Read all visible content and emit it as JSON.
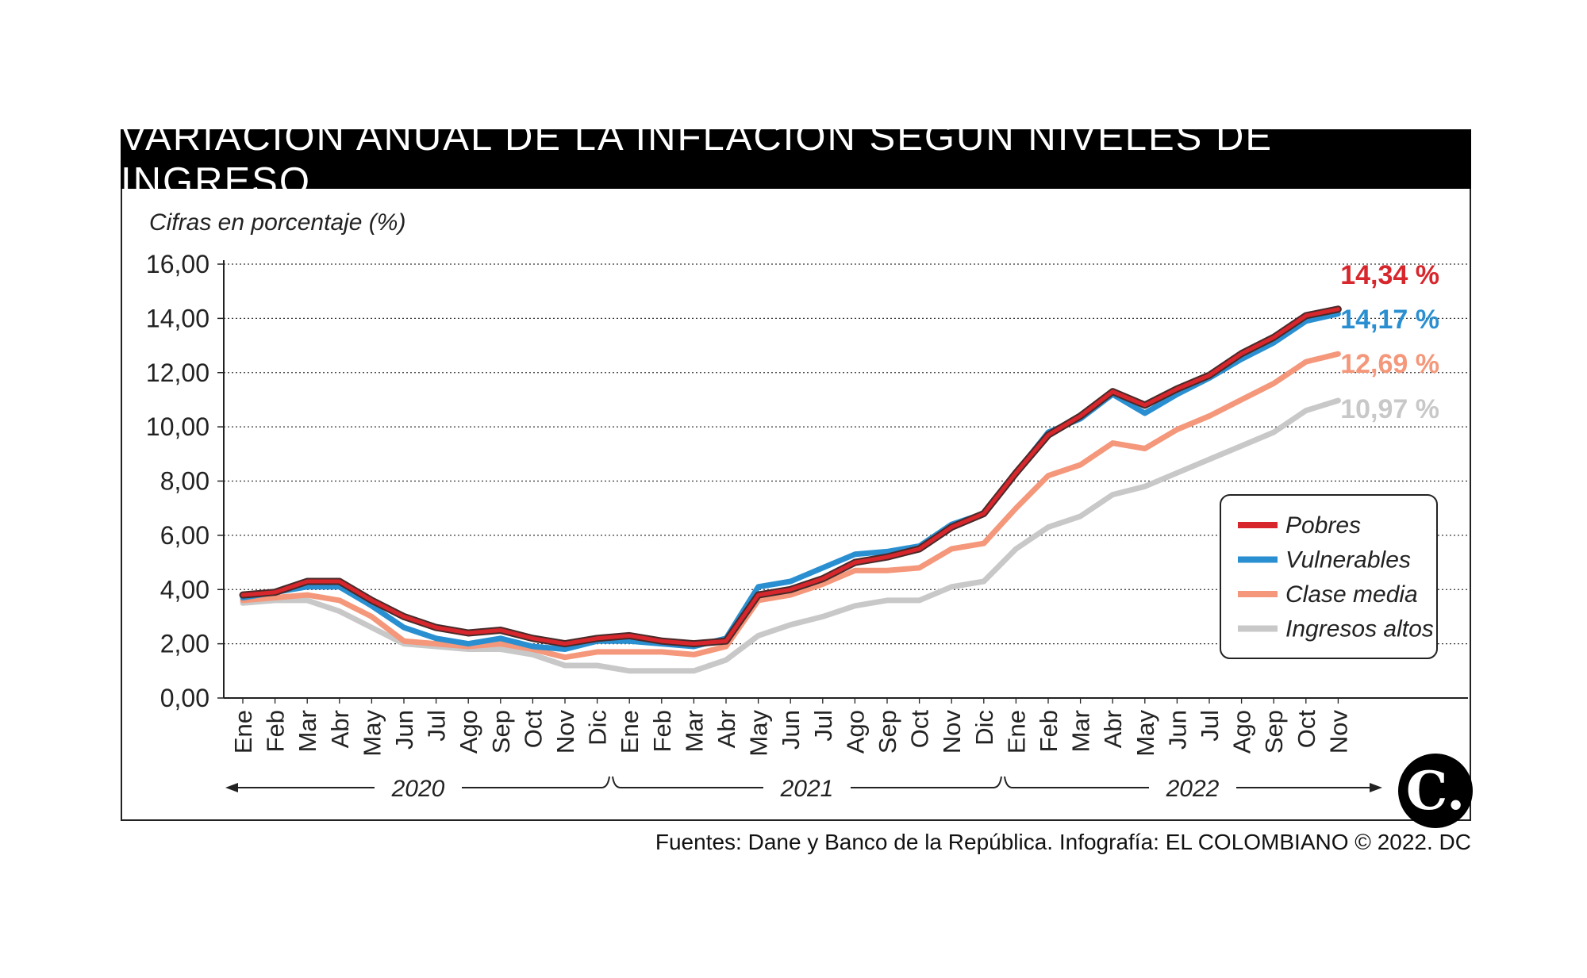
{
  "title": "VARIACIÓN ANUAL DE LA INFLACIÓN SEGÚN NIVELES DE INGRESO",
  "source": "Fuentes: Dane y Banco de la República. Infografía: EL COLOMBIANO © 2022. DC",
  "logo_text": "C.",
  "chart_data": {
    "type": "line",
    "subtitle": "Cifras en porcentaje (%)",
    "ylim": [
      0,
      16
    ],
    "yticks": [
      "0,00",
      "2,00",
      "4,00",
      "6,00",
      "8,00",
      "10,00",
      "12,00",
      "14,00",
      "16,00"
    ],
    "grid": true,
    "categories": [
      "Ene",
      "Feb",
      "Mar",
      "Abr",
      "May",
      "Jun",
      "Jul",
      "Ago",
      "Sep",
      "Oct",
      "Nov",
      "Dic",
      "Ene",
      "Feb",
      "Mar",
      "Abr",
      "May",
      "Jun",
      "Jul",
      "Ago",
      "Sep",
      "Oct",
      "Nov",
      "Dic",
      "Ene",
      "Feb",
      "Mar",
      "Abr",
      "May",
      "Jun",
      "Jul",
      "Ago",
      "Sep",
      "Oct",
      "Nov"
    ],
    "years": [
      {
        "label": "2020",
        "start": 0,
        "end": 11
      },
      {
        "label": "2021",
        "start": 12,
        "end": 23
      },
      {
        "label": "2022",
        "start": 24,
        "end": 34
      }
    ],
    "legend_position": "bottom-right",
    "series": [
      {
        "name": "Ingresos altos",
        "color": "#c8c8c8",
        "end_label": "10,97 %",
        "values": [
          3.5,
          3.6,
          3.6,
          3.2,
          2.6,
          2.0,
          1.9,
          1.8,
          1.8,
          1.6,
          1.2,
          1.2,
          1.0,
          1.0,
          1.0,
          1.4,
          2.3,
          2.7,
          3.0,
          3.4,
          3.6,
          3.6,
          4.1,
          4.3,
          5.5,
          6.3,
          6.7,
          7.5,
          7.8,
          8.3,
          8.8,
          9.3,
          9.8,
          10.6,
          10.97
        ]
      },
      {
        "name": "Clase media",
        "color": "#f4977a",
        "end_label": "12,69 %",
        "values": [
          3.6,
          3.7,
          3.8,
          3.6,
          3.0,
          2.1,
          2.0,
          1.9,
          2.0,
          1.8,
          1.5,
          1.7,
          1.7,
          1.7,
          1.6,
          1.9,
          3.6,
          3.8,
          4.2,
          4.7,
          4.7,
          4.8,
          5.5,
          5.7,
          7.0,
          8.2,
          8.6,
          9.4,
          9.2,
          9.9,
          10.4,
          11.0,
          11.6,
          12.4,
          12.69
        ]
      },
      {
        "name": "Vulnerables",
        "color": "#2a8fd1",
        "end_label": "14,17 %",
        "values": [
          3.7,
          3.9,
          4.1,
          4.1,
          3.4,
          2.6,
          2.2,
          2.0,
          2.2,
          1.9,
          1.8,
          2.1,
          2.1,
          2.0,
          1.9,
          2.2,
          4.1,
          4.3,
          4.8,
          5.3,
          5.4,
          5.6,
          6.4,
          6.8,
          8.3,
          9.8,
          10.3,
          11.2,
          10.5,
          11.2,
          11.8,
          12.5,
          13.1,
          13.9,
          14.17
        ]
      },
      {
        "name": "Pobres",
        "color": "#d7262c",
        "end_label": "14,34 %",
        "values": [
          3.8,
          3.9,
          4.3,
          4.3,
          3.6,
          3.0,
          2.6,
          2.4,
          2.5,
          2.2,
          2.0,
          2.2,
          2.3,
          2.1,
          2.0,
          2.1,
          3.8,
          4.0,
          4.4,
          5.0,
          5.2,
          5.5,
          6.3,
          6.8,
          8.3,
          9.7,
          10.4,
          11.3,
          10.8,
          11.4,
          11.9,
          12.7,
          13.3,
          14.1,
          14.34
        ]
      }
    ]
  }
}
